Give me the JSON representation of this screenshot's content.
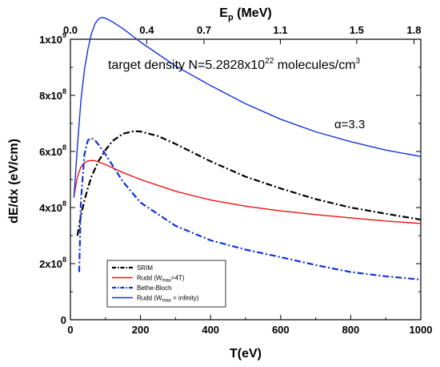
{
  "chart_data": {
    "type": "line",
    "title": "",
    "annotations": {
      "density_main": "target density N=5.2828x10",
      "density_exp": "22",
      "density_unit": " molecules/cm",
      "density_unit_exp": "3",
      "alpha": "α=3.3"
    },
    "xlabel": "T(eV)",
    "ylabel": "dE/dx (eV/cm)",
    "top_xlabel_main": "E",
    "top_xlabel_sub": "p",
    "top_xlabel_unit": " (MeV)",
    "xlim": [
      0,
      1000
    ],
    "ylim": [
      0,
      1000000000
    ],
    "x_ticks": [
      0,
      200,
      400,
      600,
      800,
      1000
    ],
    "x_tick_labels": [
      "0",
      "200",
      "400",
      "600",
      "800",
      "1000"
    ],
    "top_ticks": [
      {
        "label": "0.0",
        "T": 0
      },
      {
        "label": "0.4",
        "T": 217.9
      },
      {
        "label": "0.7",
        "T": 381.3
      },
      {
        "label": "1.1",
        "T": 599.2
      },
      {
        "label": "1.5",
        "T": 817.1
      },
      {
        "label": "1.8",
        "T": 980.5
      }
    ],
    "y_ticks": [
      {
        "value": 0,
        "base": "0",
        "exp": ""
      },
      {
        "value": 200000000,
        "base": "2x10",
        "exp": "8"
      },
      {
        "value": 400000000,
        "base": "4x10",
        "exp": "8"
      },
      {
        "value": 600000000,
        "base": "6x10",
        "exp": "8"
      },
      {
        "value": 800000000,
        "base": "8x10",
        "exp": "8"
      },
      {
        "value": 1000000000,
        "base": "1x10",
        "exp": "9"
      }
    ],
    "legend_position": "bottom-left",
    "series": [
      {
        "name": "SRIM",
        "legend_main": "SRIM",
        "legend_sub": "",
        "legend_tail": "",
        "color": "#000000",
        "dash": "8,3,2,3",
        "width": 2.2,
        "x": [
          20,
          30,
          40,
          50,
          60,
          80,
          100,
          120,
          150,
          180,
          200,
          250,
          300,
          400,
          500,
          600,
          700,
          800,
          900,
          1000
        ],
        "y": [
          300000000,
          370000000,
          425000000,
          470000000,
          510000000,
          565000000,
          605000000,
          637000000,
          663000000,
          672000000,
          671000000,
          655000000,
          627000000,
          565000000,
          510000000,
          468000000,
          430000000,
          400000000,
          378000000,
          357000000
        ]
      },
      {
        "name": "Rudd (Wmax=4T)",
        "legend_main": "Rudd (W",
        "legend_sub": "max",
        "legend_tail": "=4T)",
        "color": "#ee1111",
        "dash": "",
        "width": 1.4,
        "x": [
          10,
          20,
          30,
          40,
          50,
          60,
          70,
          80,
          100,
          150,
          200,
          300,
          400,
          500,
          600,
          700,
          800,
          900,
          1000
        ],
        "y": [
          440000000,
          510000000,
          545000000,
          560000000,
          566000000,
          568000000,
          567000000,
          563000000,
          553000000,
          525000000,
          500000000,
          458000000,
          427000000,
          405000000,
          388000000,
          375000000,
          363000000,
          352000000,
          343000000
        ]
      },
      {
        "name": "Bethe-Bloch",
        "legend_main": "Bethe-Bloch",
        "legend_sub": "",
        "legend_tail": "",
        "color": "#1133dd",
        "dash": "8,3,2,3",
        "width": 2.2,
        "x": [
          25,
          30,
          40,
          50,
          60,
          70,
          80,
          100,
          150,
          200,
          300,
          400,
          500,
          600,
          700,
          800,
          900,
          1000
        ],
        "y": [
          170000000,
          420000000,
          590000000,
          640000000,
          648000000,
          640000000,
          625000000,
          590000000,
          492000000,
          418000000,
          335000000,
          283000000,
          250000000,
          223000000,
          195000000,
          170000000,
          155000000,
          143000000
        ]
      },
      {
        "name": "Rudd (Wmax = infinity)",
        "legend_main": "Rudd (W",
        "legend_sub": "max",
        "legend_tail": " = infinity)",
        "color": "#1133dd",
        "dash": "",
        "width": 1.4,
        "x": [
          10,
          20,
          30,
          40,
          50,
          60,
          70,
          80,
          90,
          100,
          120,
          150,
          200,
          300,
          400,
          500,
          600,
          700,
          800,
          900,
          1000
        ],
        "y": [
          435000000,
          620000000,
          780000000,
          890000000,
          965000000,
          1020000000,
          1055000000,
          1072000000,
          1078000000,
          1075000000,
          1062000000,
          1038000000,
          990000000,
          905000000,
          835000000,
          770000000,
          715000000,
          670000000,
          635000000,
          605000000,
          582000000
        ]
      }
    ]
  }
}
